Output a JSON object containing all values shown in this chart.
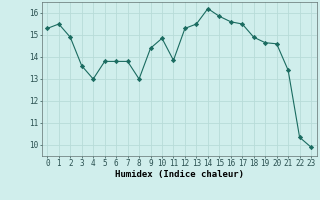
{
  "x": [
    0,
    1,
    2,
    3,
    4,
    5,
    6,
    7,
    8,
    9,
    10,
    11,
    12,
    13,
    14,
    15,
    16,
    17,
    18,
    19,
    20,
    21,
    22,
    23
  ],
  "y": [
    15.3,
    15.5,
    14.9,
    13.6,
    13.0,
    13.8,
    13.8,
    13.8,
    13.0,
    14.4,
    14.85,
    13.85,
    15.3,
    15.5,
    16.2,
    15.85,
    15.6,
    15.5,
    14.9,
    14.65,
    14.6,
    13.4,
    10.35,
    9.9
  ],
  "line_color": "#1a6b60",
  "marker": "D",
  "marker_size": 2.2,
  "bg_color": "#d0eeec",
  "grid_color": "#b8dbd8",
  "xlabel": "Humidex (Indice chaleur)",
  "ylim": [
    9.5,
    16.5
  ],
  "xlim": [
    -0.5,
    23.5
  ],
  "yticks": [
    10,
    11,
    12,
    13,
    14,
    15,
    16
  ],
  "xticks": [
    0,
    1,
    2,
    3,
    4,
    5,
    6,
    7,
    8,
    9,
    10,
    11,
    12,
    13,
    14,
    15,
    16,
    17,
    18,
    19,
    20,
    21,
    22,
    23
  ],
  "xlabel_fontsize": 6.5,
  "tick_fontsize": 5.5
}
